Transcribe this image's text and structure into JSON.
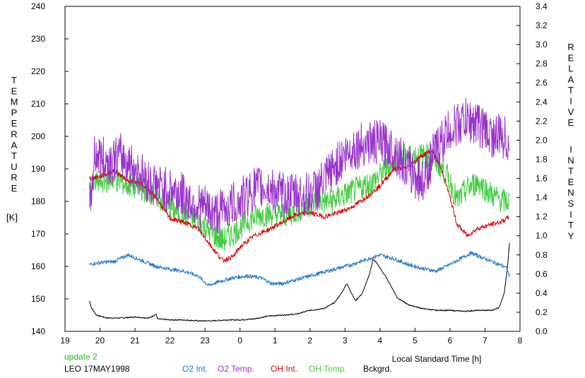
{
  "chart_data": {
    "type": "line",
    "xlabel": "Local Standard Time [h]",
    "ylabel_left_letters": [
      "T",
      "E",
      "M",
      "P",
      "E",
      "R",
      "A",
      "T",
      "U",
      "R",
      "E"
    ],
    "ylabel_left_unit": "[K]",
    "ylabel_right_word1": [
      "R",
      "E",
      "L",
      "A",
      "T",
      "I",
      "V",
      "E"
    ],
    "ylabel_right_word2": [
      "I",
      "N",
      "T",
      "E",
      "N",
      "S",
      "I",
      "T",
      "Y"
    ],
    "x_ticks": [
      "19",
      "20",
      "21",
      "22",
      "23",
      "0",
      "1",
      "2",
      "3",
      "4",
      "5",
      "6",
      "7",
      "8"
    ],
    "x_range": [
      19,
      32
    ],
    "y_left_ticks": [
      "240",
      "230",
      "220",
      "210",
      "200",
      "190",
      "180",
      "170",
      "160",
      "150",
      "140"
    ],
    "y_left_range": [
      140,
      240
    ],
    "y_right_ticks": [
      "3.4",
      "3.2",
      "3.0",
      "2.8",
      "2.6",
      "2.4",
      "2.2",
      "2.0",
      "1.8",
      "1.6",
      "1.4",
      "1.2",
      "1.0",
      "0.8",
      "0.6",
      "0.4",
      "0.2",
      "0.0"
    ],
    "y_right_range": [
      0,
      3.4
    ],
    "grid": false,
    "legend_position": "bottom",
    "footer": {
      "update": "update 2",
      "station": "LEO 17MAY1998"
    },
    "series": [
      {
        "name": "O2 Int.",
        "axis": "right",
        "color": "#1f77c8",
        "noise": 0.02,
        "points": [
          [
            19.7,
            0.7
          ],
          [
            20.0,
            0.72
          ],
          [
            20.4,
            0.73
          ],
          [
            20.8,
            0.8
          ],
          [
            21.2,
            0.74
          ],
          [
            21.6,
            0.68
          ],
          [
            22.0,
            0.65
          ],
          [
            22.4,
            0.63
          ],
          [
            22.8,
            0.58
          ],
          [
            23.1,
            0.48
          ],
          [
            23.4,
            0.52
          ],
          [
            23.8,
            0.56
          ],
          [
            24.2,
            0.58
          ],
          [
            24.6,
            0.56
          ],
          [
            24.9,
            0.5
          ],
          [
            25.2,
            0.5
          ],
          [
            25.6,
            0.54
          ],
          [
            26.0,
            0.58
          ],
          [
            26.4,
            0.62
          ],
          [
            26.8,
            0.66
          ],
          [
            27.2,
            0.7
          ],
          [
            27.6,
            0.75
          ],
          [
            28.0,
            0.8
          ],
          [
            28.4,
            0.76
          ],
          [
            28.8,
            0.7
          ],
          [
            29.2,
            0.66
          ],
          [
            29.6,
            0.63
          ],
          [
            30.0,
            0.7
          ],
          [
            30.4,
            0.78
          ],
          [
            30.6,
            0.82
          ],
          [
            31.0,
            0.76
          ],
          [
            31.4,
            0.7
          ],
          [
            31.6,
            0.67
          ],
          [
            31.7,
            0.58
          ]
        ]
      },
      {
        "name": "O2 Temp.",
        "axis": "left",
        "color": "#9932cc",
        "noise": 7,
        "points": [
          [
            19.7,
            176
          ],
          [
            19.85,
            195
          ],
          [
            20.2,
            192
          ],
          [
            20.6,
            194
          ],
          [
            21.0,
            190
          ],
          [
            21.4,
            186
          ],
          [
            21.8,
            184
          ],
          [
            22.2,
            183
          ],
          [
            22.6,
            180
          ],
          [
            23.0,
            178
          ],
          [
            23.3,
            176
          ],
          [
            23.6,
            178
          ],
          [
            24.0,
            180
          ],
          [
            24.4,
            184
          ],
          [
            24.8,
            184
          ],
          [
            25.2,
            182
          ],
          [
            25.6,
            182
          ],
          [
            26.0,
            182
          ],
          [
            26.4,
            186
          ],
          [
            26.8,
            192
          ],
          [
            27.2,
            196
          ],
          [
            27.6,
            198
          ],
          [
            28.0,
            198
          ],
          [
            28.4,
            196
          ],
          [
            28.8,
            190
          ],
          [
            29.2,
            186
          ],
          [
            29.6,
            196
          ],
          [
            30.0,
            202
          ],
          [
            30.4,
            205
          ],
          [
            30.8,
            204
          ],
          [
            31.2,
            200
          ],
          [
            31.5,
            200
          ],
          [
            31.7,
            198
          ]
        ]
      },
      {
        "name": "OH Int.",
        "axis": "right",
        "color": "#dd0000",
        "noise": 0.025,
        "points": [
          [
            19.7,
            1.6
          ],
          [
            20.0,
            1.62
          ],
          [
            20.4,
            1.68
          ],
          [
            20.8,
            1.58
          ],
          [
            21.2,
            1.54
          ],
          [
            21.6,
            1.4
          ],
          [
            22.0,
            1.18
          ],
          [
            22.4,
            1.14
          ],
          [
            22.8,
            1.08
          ],
          [
            23.2,
            0.88
          ],
          [
            23.5,
            0.74
          ],
          [
            23.8,
            0.78
          ],
          [
            24.0,
            0.88
          ],
          [
            24.4,
            1.0
          ],
          [
            24.8,
            1.06
          ],
          [
            25.2,
            1.14
          ],
          [
            25.6,
            1.22
          ],
          [
            26.0,
            1.24
          ],
          [
            26.4,
            1.2
          ],
          [
            26.8,
            1.24
          ],
          [
            27.2,
            1.3
          ],
          [
            27.6,
            1.4
          ],
          [
            28.0,
            1.52
          ],
          [
            28.4,
            1.7
          ],
          [
            28.8,
            1.72
          ],
          [
            29.2,
            1.84
          ],
          [
            29.5,
            1.9
          ],
          [
            29.8,
            1.65
          ],
          [
            30.0,
            1.4
          ],
          [
            30.2,
            1.12
          ],
          [
            30.5,
            1.0
          ],
          [
            30.8,
            1.08
          ],
          [
            31.2,
            1.12
          ],
          [
            31.5,
            1.15
          ],
          [
            31.7,
            1.2
          ]
        ]
      },
      {
        "name": "OH Temp.",
        "axis": "left",
        "color": "#44cc44",
        "noise": 4,
        "points": [
          [
            19.7,
            184
          ],
          [
            20.0,
            186
          ],
          [
            20.4,
            187
          ],
          [
            20.8,
            185
          ],
          [
            21.2,
            184
          ],
          [
            21.6,
            182
          ],
          [
            22.0,
            178
          ],
          [
            22.4,
            176
          ],
          [
            22.8,
            174
          ],
          [
            23.2,
            170
          ],
          [
            23.5,
            168
          ],
          [
            23.8,
            170
          ],
          [
            24.2,
            174
          ],
          [
            24.6,
            176
          ],
          [
            25.0,
            176
          ],
          [
            25.4,
            176
          ],
          [
            25.8,
            178
          ],
          [
            26.2,
            180
          ],
          [
            26.6,
            180
          ],
          [
            27.0,
            182
          ],
          [
            27.4,
            184
          ],
          [
            27.8,
            186
          ],
          [
            28.2,
            190
          ],
          [
            28.6,
            194
          ],
          [
            29.0,
            194
          ],
          [
            29.4,
            194
          ],
          [
            29.8,
            190
          ],
          [
            30.0,
            186
          ],
          [
            30.2,
            180
          ],
          [
            30.5,
            184
          ],
          [
            30.8,
            186
          ],
          [
            31.2,
            182
          ],
          [
            31.5,
            180
          ],
          [
            31.7,
            180
          ]
        ]
      },
      {
        "name": "Bckgrd.",
        "axis": "right",
        "color": "#000000",
        "noise": 0.006,
        "points": [
          [
            19.7,
            0.32
          ],
          [
            19.75,
            0.25
          ],
          [
            19.9,
            0.17
          ],
          [
            20.2,
            0.14
          ],
          [
            20.6,
            0.14
          ],
          [
            21.0,
            0.15
          ],
          [
            21.4,
            0.14
          ],
          [
            21.6,
            0.18
          ],
          [
            21.65,
            0.13
          ],
          [
            22.0,
            0.12
          ],
          [
            22.4,
            0.12
          ],
          [
            22.8,
            0.11
          ],
          [
            23.2,
            0.11
          ],
          [
            23.6,
            0.12
          ],
          [
            24.0,
            0.12
          ],
          [
            24.4,
            0.13
          ],
          [
            24.8,
            0.16
          ],
          [
            25.2,
            0.17
          ],
          [
            25.6,
            0.18
          ],
          [
            26.0,
            0.22
          ],
          [
            26.4,
            0.24
          ],
          [
            26.7,
            0.3
          ],
          [
            26.9,
            0.4
          ],
          [
            27.05,
            0.5
          ],
          [
            27.3,
            0.32
          ],
          [
            27.5,
            0.4
          ],
          [
            27.7,
            0.6
          ],
          [
            27.8,
            0.75
          ],
          [
            27.9,
            0.72
          ],
          [
            28.2,
            0.55
          ],
          [
            28.5,
            0.35
          ],
          [
            28.8,
            0.28
          ],
          [
            29.2,
            0.24
          ],
          [
            29.6,
            0.22
          ],
          [
            30.0,
            0.22
          ],
          [
            30.4,
            0.21
          ],
          [
            30.8,
            0.22
          ],
          [
            31.2,
            0.22
          ],
          [
            31.4,
            0.25
          ],
          [
            31.55,
            0.4
          ],
          [
            31.65,
            0.7
          ],
          [
            31.7,
            0.92
          ]
        ]
      }
    ]
  }
}
